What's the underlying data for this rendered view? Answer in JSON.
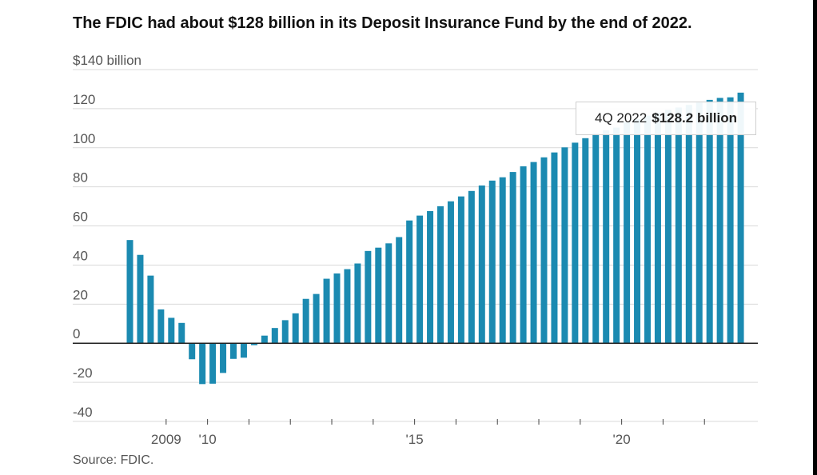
{
  "title": "The FDIC had about $128 billion in its Deposit Insurance Fund by the end of 2022.",
  "source": "Source: FDIC.",
  "colors": {
    "bar": "#1b8ab1",
    "grid": "#d9d9d9",
    "zero_line": "#222222"
  },
  "callout": {
    "label": "4Q 2022",
    "value": "$128.2 billion"
  },
  "chart_data": {
    "type": "bar",
    "title": "The FDIC had about $128 billion in its Deposit Insurance Fund by the end of 2022.",
    "ylim": [
      -40,
      140
    ],
    "y_ticks": [
      {
        "value": 140,
        "label": "$140 billion"
      },
      {
        "value": 120,
        "label": "120"
      },
      {
        "value": 100,
        "label": "100"
      },
      {
        "value": 80,
        "label": "80"
      },
      {
        "value": 60,
        "label": "60"
      },
      {
        "value": 40,
        "label": "40"
      },
      {
        "value": 20,
        "label": "20"
      },
      {
        "value": 0,
        "label": "0"
      },
      {
        "value": -20,
        "label": "-20"
      },
      {
        "value": -40,
        "label": "-40"
      }
    ],
    "x_labels": [
      {
        "year": 2009,
        "label": "2009"
      },
      {
        "year": 2010,
        "label": "'10"
      },
      {
        "year": 2015,
        "label": "'15"
      },
      {
        "year": 2020,
        "label": "'20"
      }
    ],
    "x_ticks_years": [
      2009,
      2010,
      2011,
      2012,
      2013,
      2014,
      2015,
      2016,
      2017,
      2018,
      2019,
      2020,
      2021,
      2022
    ],
    "grid": true,
    "x_start": "1Q 2008",
    "quarters": [
      "1Q 2008",
      "2Q 2008",
      "3Q 2008",
      "4Q 2008",
      "1Q 2009",
      "2Q 2009",
      "3Q 2009",
      "4Q 2009",
      "1Q 2010",
      "2Q 2010",
      "3Q 2010",
      "4Q 2010",
      "1Q 2011",
      "2Q 2011",
      "3Q 2011",
      "4Q 2011",
      "1Q 2012",
      "2Q 2012",
      "3Q 2012",
      "4Q 2012",
      "1Q 2013",
      "2Q 2013",
      "3Q 2013",
      "4Q 2013",
      "1Q 2014",
      "2Q 2014",
      "3Q 2014",
      "4Q 2014",
      "1Q 2015",
      "2Q 2015",
      "3Q 2015",
      "4Q 2015",
      "1Q 2016",
      "2Q 2016",
      "3Q 2016",
      "4Q 2016",
      "1Q 2017",
      "2Q 2017",
      "3Q 2017",
      "4Q 2017",
      "1Q 2018",
      "2Q 2018",
      "3Q 2018",
      "4Q 2018",
      "1Q 2019",
      "2Q 2019",
      "3Q 2019",
      "4Q 2019",
      "1Q 2020",
      "2Q 2020",
      "3Q 2020",
      "4Q 2020",
      "1Q 2021",
      "2Q 2021",
      "3Q 2021",
      "4Q 2021",
      "1Q 2022",
      "2Q 2022",
      "3Q 2022",
      "4Q 2022"
    ],
    "values": [
      52.8,
      45.2,
      34.6,
      17.3,
      13.0,
      10.4,
      -8.2,
      -20.9,
      -20.7,
      -15.2,
      -8.0,
      -7.4,
      -1.0,
      3.9,
      7.8,
      11.8,
      15.3,
      22.7,
      25.2,
      33.0,
      35.7,
      37.9,
      40.8,
      47.2,
      48.9,
      51.1,
      54.3,
      62.8,
      65.3,
      67.6,
      70.1,
      72.6,
      75.1,
      77.9,
      80.7,
      83.2,
      84.9,
      87.6,
      90.5,
      92.7,
      95.1,
      97.6,
      100.2,
      102.6,
      104.9,
      107.4,
      108.9,
      110.3,
      113.2,
      114.7,
      116.4,
      117.9,
      119.4,
      120.6,
      121.9,
      123.1,
      124.5,
      125.5,
      125.8,
      128.2
    ]
  }
}
